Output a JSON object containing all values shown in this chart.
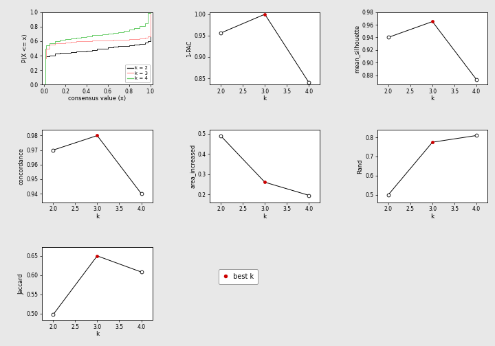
{
  "ecdf": {
    "k2": {
      "x": [
        0.0,
        0.01,
        0.02,
        0.05,
        0.1,
        0.15,
        0.2,
        0.25,
        0.3,
        0.35,
        0.4,
        0.45,
        0.5,
        0.55,
        0.6,
        0.65,
        0.7,
        0.75,
        0.8,
        0.85,
        0.9,
        0.95,
        0.98,
        1.0
      ],
      "y": [
        0.0,
        0.38,
        0.39,
        0.4,
        0.43,
        0.44,
        0.44,
        0.45,
        0.46,
        0.46,
        0.47,
        0.48,
        0.5,
        0.5,
        0.51,
        0.52,
        0.53,
        0.53,
        0.54,
        0.55,
        0.56,
        0.58,
        0.6,
        1.0
      ],
      "color": "#1a1a1a"
    },
    "k3": {
      "x": [
        0.0,
        0.01,
        0.02,
        0.05,
        0.1,
        0.15,
        0.2,
        0.25,
        0.3,
        0.35,
        0.4,
        0.45,
        0.5,
        0.55,
        0.6,
        0.65,
        0.7,
        0.75,
        0.8,
        0.85,
        0.9,
        0.95,
        0.98,
        1.0
      ],
      "y": [
        0.0,
        0.36,
        0.5,
        0.55,
        0.57,
        0.57,
        0.58,
        0.59,
        0.6,
        0.6,
        0.6,
        0.61,
        0.61,
        0.61,
        0.61,
        0.62,
        0.62,
        0.62,
        0.63,
        0.63,
        0.64,
        0.65,
        0.67,
        1.0
      ],
      "color": "#ff9999"
    },
    "k4": {
      "x": [
        0.0,
        0.01,
        0.02,
        0.05,
        0.1,
        0.15,
        0.2,
        0.25,
        0.3,
        0.35,
        0.4,
        0.45,
        0.5,
        0.55,
        0.6,
        0.65,
        0.7,
        0.75,
        0.8,
        0.85,
        0.9,
        0.95,
        0.98,
        1.0
      ],
      "y": [
        0.0,
        0.5,
        0.54,
        0.57,
        0.6,
        0.62,
        0.63,
        0.64,
        0.65,
        0.66,
        0.67,
        0.68,
        0.68,
        0.69,
        0.7,
        0.71,
        0.72,
        0.74,
        0.76,
        0.78,
        0.81,
        0.85,
        0.99,
        1.0
      ],
      "color": "#66cc66"
    }
  },
  "pac": {
    "k": [
      2,
      3,
      4
    ],
    "y": [
      0.956,
      1.0,
      0.84
    ],
    "best_k": 3,
    "ylabel": "1-PAC",
    "yticks": [
      0.85,
      0.9,
      0.95,
      1.0
    ],
    "ylim": [
      0.835,
      1.005
    ]
  },
  "silhouette": {
    "k": [
      2,
      3,
      4
    ],
    "y": [
      0.94,
      0.965,
      0.873
    ],
    "best_k": 3,
    "ylabel": "mean_silhouette",
    "yticks": [
      0.88,
      0.9,
      0.92,
      0.94,
      0.96,
      0.98
    ],
    "ylim": [
      0.865,
      0.975
    ]
  },
  "concordance": {
    "k": [
      2,
      3,
      4
    ],
    "y": [
      0.97,
      0.98,
      0.94
    ],
    "best_k": 3,
    "ylabel": "concordance",
    "yticks": [
      0.94,
      0.95,
      0.96,
      0.97,
      0.98
    ],
    "ylim": [
      0.934,
      0.984
    ]
  },
  "area_increased": {
    "k": [
      2,
      3,
      4
    ],
    "y": [
      0.49,
      0.26,
      0.195
    ],
    "best_k": 3,
    "ylabel": "area_increased",
    "yticks": [
      0.2,
      0.3,
      0.4,
      0.5
    ],
    "ylim": [
      0.16,
      0.52
    ]
  },
  "rand": {
    "k": [
      2,
      3,
      4
    ],
    "y": [
      0.5,
      0.775,
      0.81
    ],
    "best_k": 3,
    "ylabel": "Rand",
    "yticks": [
      0.5,
      0.6,
      0.7,
      0.8
    ],
    "ylim": [
      0.46,
      0.84
    ]
  },
  "jaccard": {
    "k": [
      2,
      3,
      4
    ],
    "y": [
      0.497,
      0.65,
      0.608
    ],
    "best_k": 3,
    "ylabel": "Jaccard",
    "yticks": [
      0.5,
      0.55,
      0.6,
      0.65
    ],
    "ylim": [
      0.483,
      0.672
    ]
  },
  "bg_color": "#e8e8e8",
  "plot_bg": "#ffffff",
  "best_color": "#cc0000",
  "legend_labels": [
    "k = 2",
    "k = 3",
    "k = 4"
  ]
}
